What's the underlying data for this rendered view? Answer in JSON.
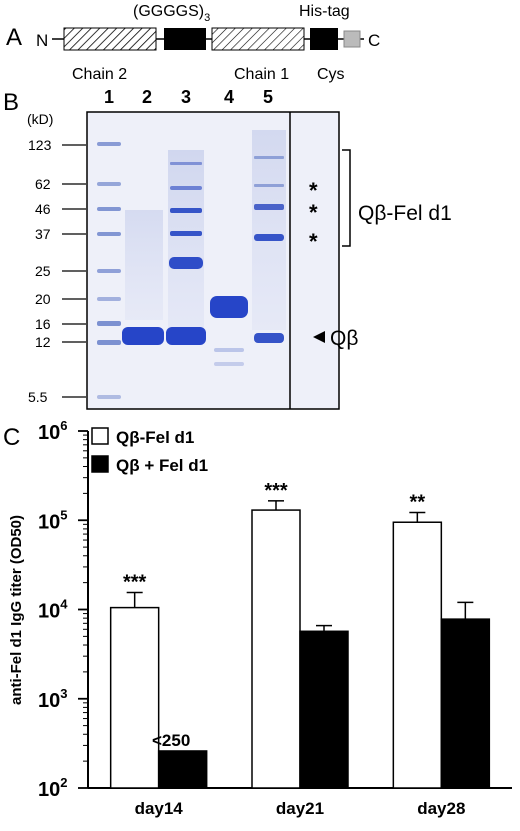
{
  "panel_a": {
    "letter": "A",
    "n_terminus": "N",
    "c_terminus": "C",
    "linker_label_main": "(GGGGS)",
    "linker_label_sub": "3",
    "his_tag": "His-tag",
    "chain2": "Chain 2",
    "chain1": "Chain 1",
    "cys": "Cys"
  },
  "panel_b": {
    "letter": "B",
    "unit": "(kD)",
    "lanes": [
      "1",
      "2",
      "3",
      "4",
      "5"
    ],
    "markers": [
      "123",
      "62",
      "46",
      "37",
      "25",
      "20",
      "16",
      "12",
      "5.5"
    ],
    "star": "*",
    "conjugate_label": "Qβ-Fel d1",
    "qb_label": "Qβ",
    "band_colors": {
      "marker": "#6f86cc",
      "strong": "#2645c8",
      "gel_bg": "#eef0f9"
    }
  },
  "panel_c": {
    "letter": "C",
    "ylabel": "anti-Fel d1 IgG titer (OD50)",
    "yticks": [
      {
        "base": "10",
        "exp": "2"
      },
      {
        "base": "10",
        "exp": "3"
      },
      {
        "base": "10",
        "exp": "4"
      },
      {
        "base": "10",
        "exp": "5"
      },
      {
        "base": "10",
        "exp": "6"
      }
    ],
    "annotation_below_detection": "<250"
  },
  "chart_data": {
    "type": "bar",
    "scale": "log",
    "ylim": [
      100,
      1000000
    ],
    "ylabel": "anti-Fel d1 IgG titer (OD50)",
    "categories": [
      "day14",
      "day21",
      "day28"
    ],
    "series": [
      {
        "name": "Qβ-Fel d1",
        "color": "#ffffff",
        "values": [
          10500,
          130000,
          95000
        ],
        "errors": [
          15500,
          165000,
          122000
        ],
        "significance": [
          "***",
          "***",
          "**"
        ]
      },
      {
        "name": "Qβ + Fel d1",
        "color": "#000000",
        "values": [
          260,
          5700,
          7800
        ],
        "errors": [
          260,
          6600,
          12000
        ],
        "significance": [
          "",
          "",
          ""
        ]
      }
    ],
    "legend_position": "top-left"
  }
}
